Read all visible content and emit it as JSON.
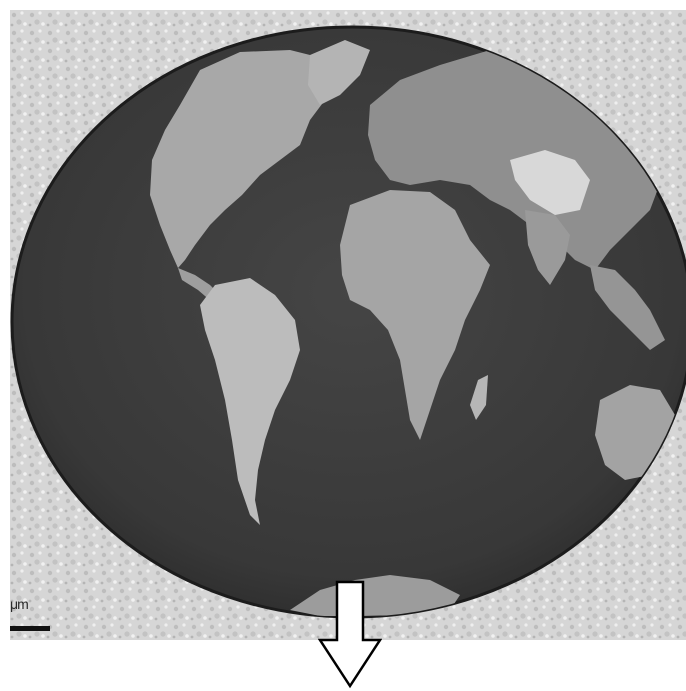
{
  "image": {
    "subject": "world-map-micrograph",
    "colors": {
      "substrate": "#d9d9d9",
      "disc": "#3b3b3b",
      "land": "#9a9a9a",
      "land_light": "#c8c8c8",
      "scale_bar": "#111111",
      "arrow_stroke": "#000000",
      "arrow_fill": "#ffffff"
    }
  },
  "scale_bar": {
    "label": "μm"
  },
  "arrow": {
    "icon": "down-arrow-icon"
  }
}
